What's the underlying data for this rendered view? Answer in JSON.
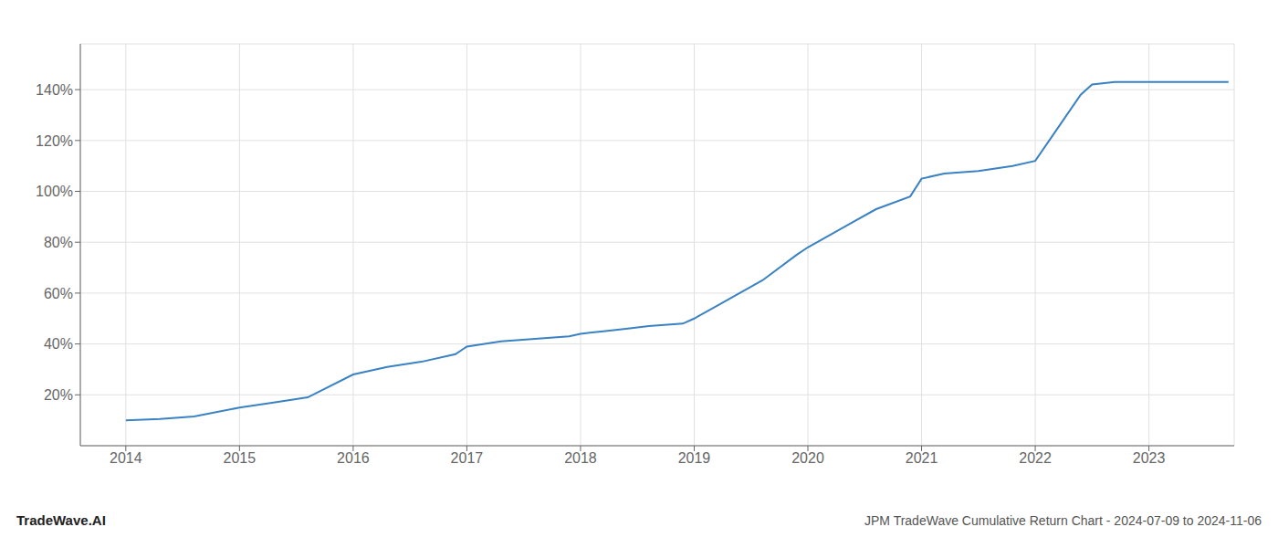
{
  "chart_data": {
    "type": "line",
    "x": [
      2014.0,
      2014.3,
      2014.6,
      2015.0,
      2015.3,
      2015.6,
      2016.0,
      2016.3,
      2016.6,
      2016.9,
      2017.0,
      2017.3,
      2017.6,
      2017.9,
      2018.0,
      2018.1,
      2018.2,
      2018.4,
      2018.6,
      2018.9,
      2019.0,
      2019.2,
      2019.4,
      2019.6,
      2019.9,
      2020.0,
      2020.2,
      2020.4,
      2020.6,
      2020.9,
      2021.0,
      2021.2,
      2021.5,
      2021.8,
      2022.0,
      2022.2,
      2022.4,
      2022.5,
      2022.7,
      2023.0,
      2023.3,
      2023.7
    ],
    "values": [
      10,
      10.5,
      11.5,
      15,
      17,
      19,
      28,
      31,
      33,
      36,
      39,
      41,
      42,
      43,
      44,
      44.5,
      45,
      46,
      47,
      48,
      50,
      55,
      60,
      65,
      75,
      78,
      83,
      88,
      93,
      98,
      105,
      107,
      108,
      110,
      112,
      125,
      138,
      142,
      143,
      143,
      143,
      143
    ],
    "color": "#3a82c4",
    "xlim": [
      2013.6,
      2023.75
    ],
    "xticks": [
      2014,
      2015,
      2016,
      2017,
      2018,
      2019,
      2020,
      2021,
      2022,
      2023
    ],
    "ylim": [
      0,
      158
    ],
    "yticks": [
      {
        "value": 20,
        "label": "20%"
      },
      {
        "value": 40,
        "label": "40%"
      },
      {
        "value": 60,
        "label": "60%"
      },
      {
        "value": 80,
        "label": "80%"
      },
      {
        "value": 100,
        "label": "100%"
      },
      {
        "value": 120,
        "label": "120%"
      },
      {
        "value": 140,
        "label": "140%"
      }
    ],
    "grid": true,
    "annotations": [
      "TradeWave.AI",
      "JPM TradeWave Cumulative Return Chart - 2024-07-09 to 2024-11-06"
    ]
  }
}
